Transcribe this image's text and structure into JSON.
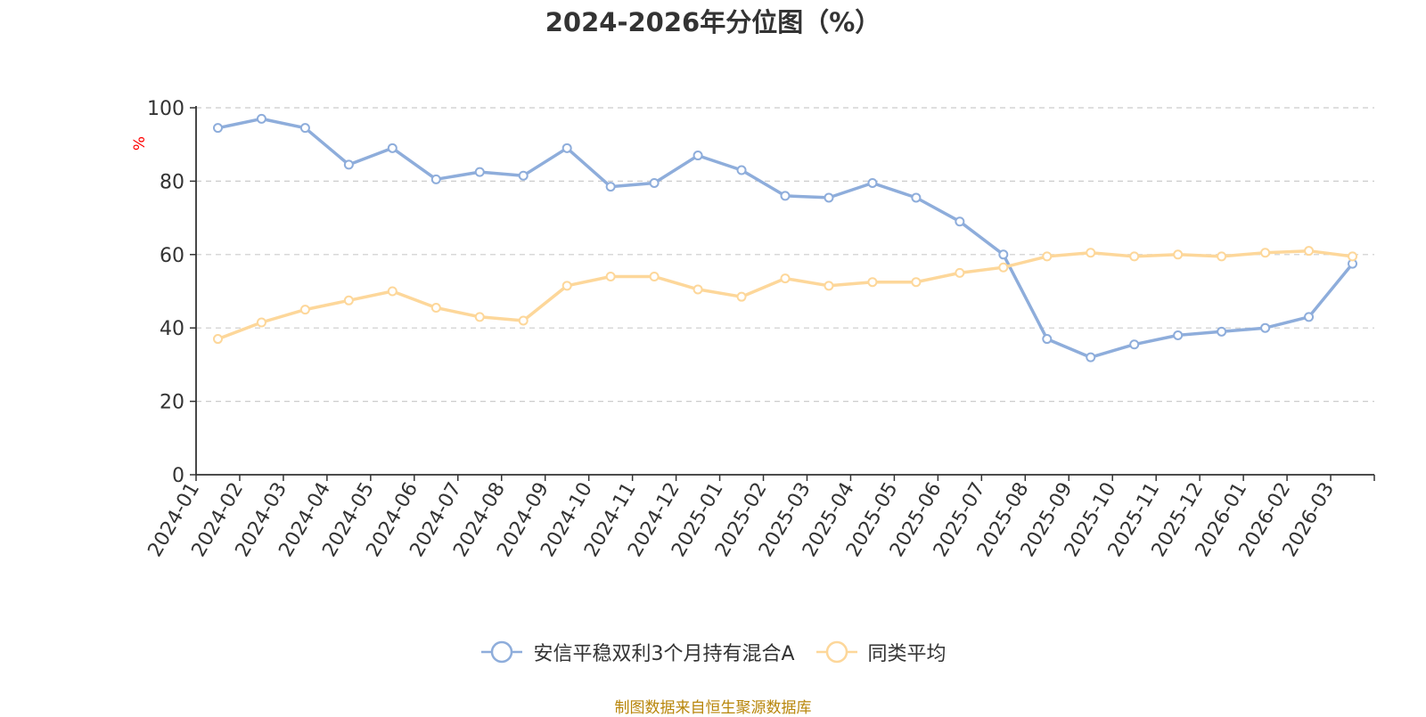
{
  "title": "2024-2026年分位图（%）",
  "source_note": "制图数据来自恒生聚源数据库",
  "colors": {
    "series_fund": "#8eaddb",
    "series_avg": "#fdd79a",
    "axis": "#333333",
    "grid": "#cccccc",
    "ylabel": "#ff0000",
    "source": "#b8860b"
  },
  "chart_data": {
    "type": "line",
    "title": "2024-2026年分位图（%）",
    "xlabel": "",
    "ylabel": "%",
    "ylim": [
      0,
      100
    ],
    "yticks": [
      0,
      20,
      40,
      60,
      80,
      100
    ],
    "grid": true,
    "legend_position": "bottom",
    "categories": [
      "2024-01",
      "2024-02",
      "2024-03",
      "2024-04",
      "2024-05",
      "2024-06",
      "2024-07",
      "2024-08",
      "2024-09",
      "2024-10",
      "2024-11",
      "2024-12",
      "2025-01",
      "2025-02",
      "2025-03",
      "2025-04",
      "2025-05",
      "2025-06",
      "2025-07",
      "2025-08",
      "2025-09",
      "2025-10",
      "2025-11",
      "2025-12",
      "2026-01",
      "2026-02",
      "2026-03"
    ],
    "series": [
      {
        "name": "安信平稳双利3个月持有混合A",
        "color": "#8eaddb",
        "values": [
          94.5,
          97.0,
          94.5,
          84.5,
          89.0,
          80.5,
          82.5,
          81.5,
          89.0,
          78.5,
          79.5,
          87.0,
          83.0,
          76.0,
          75.5,
          79.5,
          75.5,
          69.0,
          60.0,
          37.0,
          32.0,
          35.5,
          38.0,
          39.0,
          40.0,
          43.0,
          57.5
        ]
      },
      {
        "name": "同类平均",
        "color": "#fdd79a",
        "values": [
          37.0,
          41.5,
          45.0,
          47.5,
          50.0,
          45.5,
          43.0,
          42.0,
          51.5,
          54.0,
          54.0,
          50.5,
          48.5,
          53.5,
          51.5,
          52.5,
          52.5,
          55.0,
          56.5,
          59.5,
          60.5,
          59.5,
          60.0,
          59.5,
          60.5,
          61.0,
          59.5
        ]
      }
    ]
  }
}
